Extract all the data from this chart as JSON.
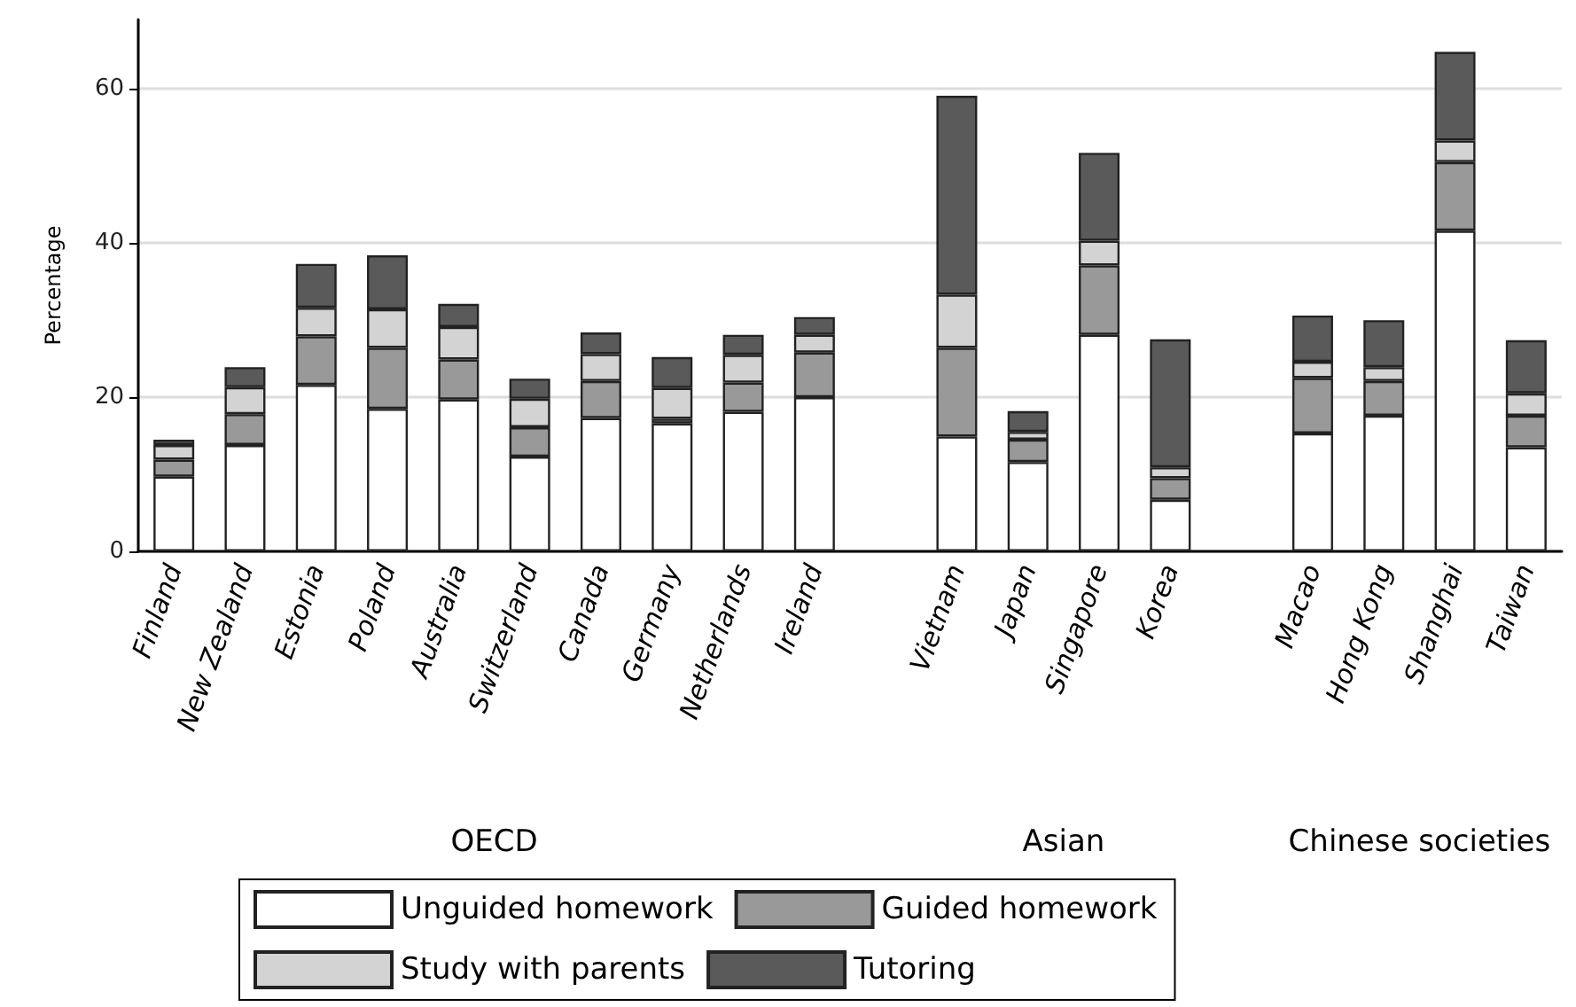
{
  "chart_data": {
    "type": "bar",
    "stacked": true,
    "ylabel": "Percentage",
    "categories": [
      "Finland",
      "New Zealand",
      "Estonia",
      "Poland",
      "Australia",
      "Switzerland",
      "Canada",
      "Germany",
      "Netherlands",
      "Ireland",
      null,
      "Vietnam",
      "Japan",
      "Singapore",
      "Korea",
      null,
      "Macao",
      "Hong Kong",
      "Shanghai",
      "Taiwan"
    ],
    "series": [
      {
        "name": "Unguided homework",
        "color": "#ffffff",
        "values": [
          9.7,
          13.8,
          21.6,
          18.5,
          19.7,
          12.3,
          17.3,
          16.6,
          18.1,
          20.0,
          null,
          14.9,
          11.6,
          28.1,
          6.7,
          null,
          15.3,
          17.6,
          41.6,
          13.5
        ]
      },
      {
        "name": "Guided homework",
        "color": "#999999",
        "values": [
          2.2,
          4.0,
          6.3,
          7.9,
          5.2,
          3.8,
          4.8,
          0.6,
          3.8,
          5.8,
          null,
          11.5,
          2.9,
          9.0,
          2.8,
          null,
          7.2,
          4.5,
          8.9,
          4.1
        ]
      },
      {
        "name": "Study with parents",
        "color": "#d3d3d3",
        "values": [
          1.9,
          3.5,
          3.7,
          5.0,
          4.2,
          3.7,
          3.5,
          4.0,
          3.6,
          2.3,
          null,
          6.9,
          1.0,
          3.2,
          1.4,
          null,
          2.1,
          1.8,
          2.8,
          2.9
        ]
      },
      {
        "name": "Tutoring",
        "color": "#5a5a5a",
        "values": [
          0.7,
          2.6,
          5.7,
          7.0,
          3.0,
          2.6,
          2.8,
          4.0,
          2.6,
          2.3,
          null,
          25.8,
          2.7,
          11.4,
          16.6,
          null,
          6.0,
          6.1,
          11.5,
          6.9
        ]
      }
    ],
    "ylim": [
      0,
      69
    ],
    "yticks": [
      0,
      20,
      40,
      60
    ],
    "grid": "y",
    "legend": "bottom",
    "annotations": [
      "OECD",
      "Asian",
      "Chinese societies"
    ]
  }
}
